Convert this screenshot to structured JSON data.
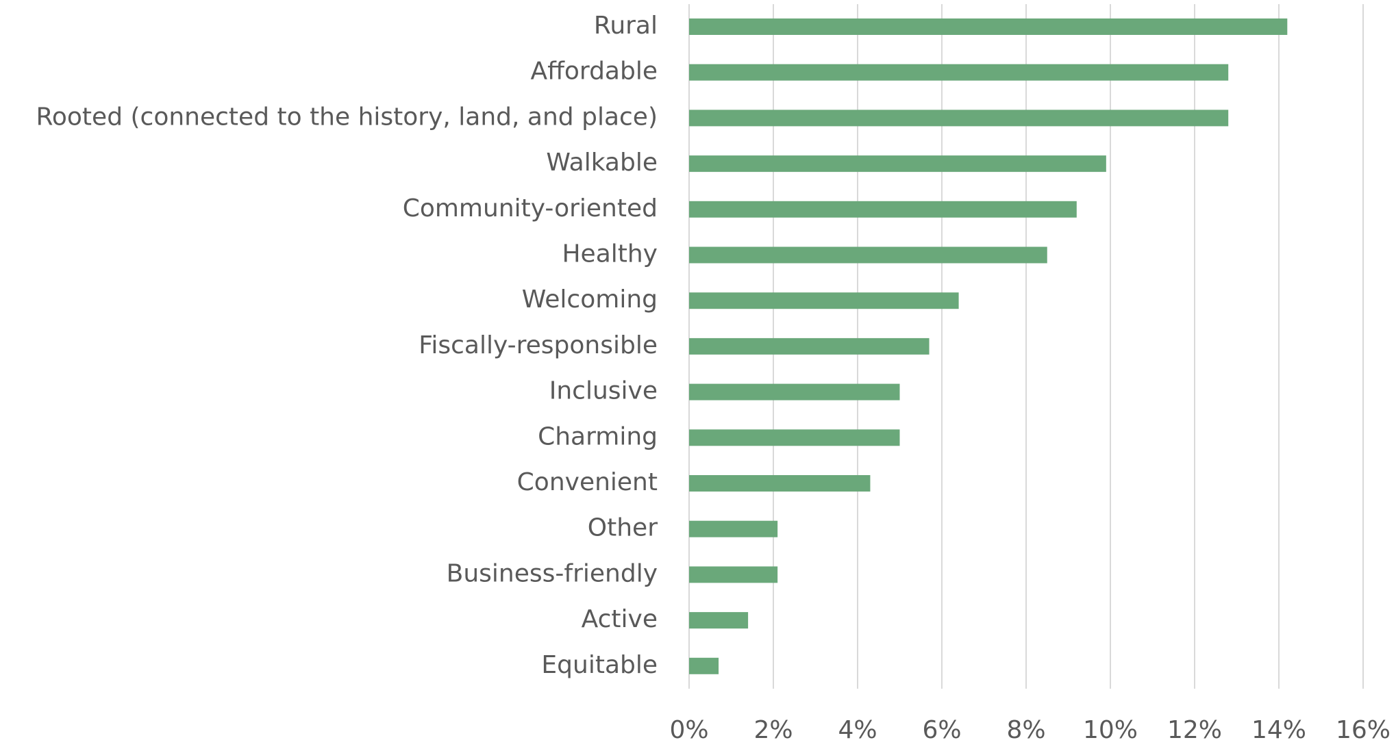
{
  "chart_data": {
    "type": "barh",
    "categories": [
      "Rural",
      "Affordable",
      "Rooted (connected to the history, land, and place)",
      "Walkable",
      "Community-oriented",
      "Healthy",
      "Welcoming",
      "Fiscally-responsible",
      "Inclusive",
      "Charming",
      "Convenient",
      "Other",
      "Business-friendly",
      "Active",
      "Equitable"
    ],
    "values": [
      14.2,
      12.8,
      12.8,
      9.9,
      9.2,
      8.5,
      6.4,
      5.7,
      5.0,
      5.0,
      4.3,
      2.1,
      2.1,
      1.4,
      0.7
    ],
    "color": "#6aa87a",
    "xlim": [
      0,
      16
    ],
    "xticks": [
      {
        "value": 0,
        "label": "0%"
      },
      {
        "value": 2,
        "label": "2%"
      },
      {
        "value": 4,
        "label": "4%"
      },
      {
        "value": 6,
        "label": "6%"
      },
      {
        "value": 8,
        "label": "8%"
      },
      {
        "value": 10,
        "label": "10%"
      },
      {
        "value": 12,
        "label": "12%"
      },
      {
        "value": 14,
        "label": "14%"
      },
      {
        "value": 16,
        "label": "16%"
      }
    ],
    "grid": true
  }
}
